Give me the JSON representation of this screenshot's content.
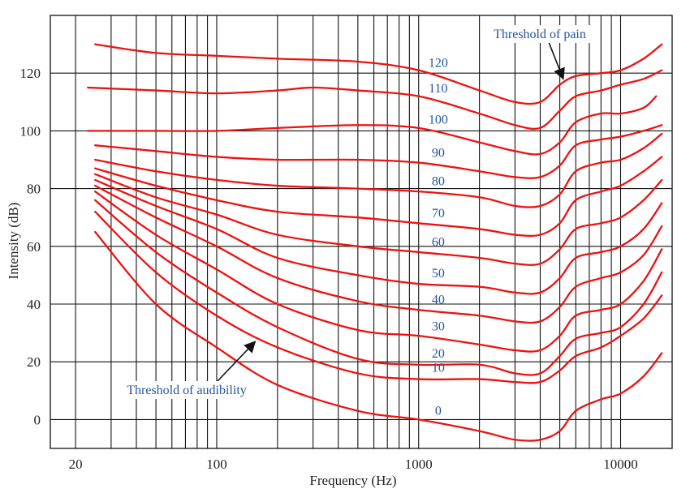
{
  "chart_data": {
    "type": "line",
    "title": "",
    "xlabel": "Frequency (Hz)",
    "ylabel": "Intensity (dB)",
    "xscale": "log",
    "xlim": [
      15,
      18000
    ],
    "ylim": [
      -10,
      140
    ],
    "grid": true,
    "x_tick_labels": [
      {
        "value": 20,
        "label": "20"
      },
      {
        "value": 100,
        "label": "100"
      },
      {
        "value": 1000,
        "label": "1000"
      },
      {
        "value": 10000,
        "label": "10000"
      }
    ],
    "x_minor_gridlines": [
      20,
      30,
      40,
      50,
      60,
      70,
      80,
      90,
      100,
      200,
      300,
      400,
      500,
      600,
      700,
      800,
      900,
      1000,
      2000,
      3000,
      4000,
      5000,
      6000,
      7000,
      8000,
      9000,
      10000
    ],
    "y_ticks": [
      {
        "value": 0,
        "label": "0"
      },
      {
        "value": 20,
        "label": "20"
      },
      {
        "value": 40,
        "label": "40"
      },
      {
        "value": 60,
        "label": "60"
      },
      {
        "value": 80,
        "label": "80"
      },
      {
        "value": 100,
        "label": "100"
      },
      {
        "value": 120,
        "label": "120"
      }
    ],
    "series": [
      {
        "name": "0",
        "points": [
          [
            25,
            65
          ],
          [
            50,
            40
          ],
          [
            100,
            25
          ],
          [
            200,
            12
          ],
          [
            500,
            3
          ],
          [
            1000,
            0
          ],
          [
            2000,
            -4
          ],
          [
            3000,
            -7
          ],
          [
            4000,
            -7
          ],
          [
            5000,
            -4
          ],
          [
            6000,
            3
          ],
          [
            8000,
            7
          ],
          [
            10000,
            9
          ],
          [
            13000,
            15
          ],
          [
            16000,
            23
          ]
        ]
      },
      {
        "name": "10",
        "points": [
          [
            25,
            72
          ],
          [
            50,
            51
          ],
          [
            100,
            36
          ],
          [
            200,
            25
          ],
          [
            500,
            16
          ],
          [
            1000,
            14
          ],
          [
            2000,
            14
          ],
          [
            3000,
            13
          ],
          [
            4000,
            13
          ],
          [
            5000,
            17
          ],
          [
            6000,
            22
          ],
          [
            8000,
            25
          ],
          [
            10000,
            29
          ],
          [
            13000,
            35
          ],
          [
            16000,
            43
          ]
        ]
      },
      {
        "name": "20",
        "points": [
          [
            25,
            76
          ],
          [
            50,
            58
          ],
          [
            100,
            44
          ],
          [
            200,
            32
          ],
          [
            500,
            21
          ],
          [
            1000,
            19
          ],
          [
            2000,
            19
          ],
          [
            3000,
            16
          ],
          [
            4000,
            16
          ],
          [
            5000,
            22
          ],
          [
            6000,
            28
          ],
          [
            8000,
            30
          ],
          [
            10000,
            32
          ],
          [
            13000,
            40
          ],
          [
            16000,
            51
          ]
        ]
      },
      {
        "name": "30",
        "points": [
          [
            25,
            79
          ],
          [
            50,
            64
          ],
          [
            100,
            52
          ],
          [
            200,
            40
          ],
          [
            500,
            31
          ],
          [
            1000,
            29
          ],
          [
            2000,
            26
          ],
          [
            3000,
            24
          ],
          [
            4000,
            24
          ],
          [
            5000,
            29
          ],
          [
            6000,
            36
          ],
          [
            8000,
            38
          ],
          [
            10000,
            40
          ],
          [
            13000,
            48
          ],
          [
            16000,
            59
          ]
        ]
      },
      {
        "name": "40",
        "points": [
          [
            25,
            81
          ],
          [
            50,
            70
          ],
          [
            100,
            60
          ],
          [
            200,
            49
          ],
          [
            500,
            41
          ],
          [
            1000,
            38
          ],
          [
            2000,
            36
          ],
          [
            3000,
            34
          ],
          [
            4000,
            34
          ],
          [
            5000,
            39
          ],
          [
            6000,
            46
          ],
          [
            8000,
            49
          ],
          [
            10000,
            51
          ],
          [
            13000,
            57
          ],
          [
            16000,
            67
          ]
        ]
      },
      {
        "name": "50",
        "points": [
          [
            25,
            83
          ],
          [
            50,
            74
          ],
          [
            100,
            66
          ],
          [
            200,
            56
          ],
          [
            500,
            50
          ],
          [
            1000,
            47
          ],
          [
            2000,
            46
          ],
          [
            3000,
            44
          ],
          [
            4000,
            44
          ],
          [
            5000,
            49
          ],
          [
            6000,
            56
          ],
          [
            8000,
            58
          ],
          [
            10000,
            60
          ],
          [
            13000,
            66
          ],
          [
            16000,
            75
          ]
        ]
      },
      {
        "name": "60",
        "points": [
          [
            25,
            85
          ],
          [
            50,
            77
          ],
          [
            100,
            71
          ],
          [
            200,
            64
          ],
          [
            500,
            60
          ],
          [
            1000,
            58
          ],
          [
            2000,
            56
          ],
          [
            3000,
            54
          ],
          [
            4000,
            54
          ],
          [
            5000,
            59
          ],
          [
            6000,
            66
          ],
          [
            8000,
            68
          ],
          [
            10000,
            70
          ],
          [
            13000,
            76
          ],
          [
            16000,
            83
          ]
        ]
      },
      {
        "name": "70",
        "points": [
          [
            25,
            87
          ],
          [
            50,
            81
          ],
          [
            100,
            76
          ],
          [
            200,
            72
          ],
          [
            500,
            70
          ],
          [
            1000,
            68
          ],
          [
            2000,
            66
          ],
          [
            3000,
            64
          ],
          [
            4000,
            64
          ],
          [
            5000,
            68
          ],
          [
            6000,
            76
          ],
          [
            8000,
            79
          ],
          [
            10000,
            81
          ],
          [
            13000,
            86
          ],
          [
            16000,
            91
          ]
        ]
      },
      {
        "name": "80",
        "points": [
          [
            25,
            90
          ],
          [
            50,
            86
          ],
          [
            100,
            83
          ],
          [
            200,
            81
          ],
          [
            500,
            80
          ],
          [
            1000,
            79
          ],
          [
            2000,
            77
          ],
          [
            3000,
            74
          ],
          [
            4000,
            74
          ],
          [
            5000,
            78
          ],
          [
            6000,
            86
          ],
          [
            8000,
            89
          ],
          [
            10000,
            90
          ],
          [
            13000,
            94
          ],
          [
            16000,
            99
          ]
        ]
      },
      {
        "name": "90",
        "points": [
          [
            25,
            95
          ],
          [
            50,
            93
          ],
          [
            100,
            91
          ],
          [
            200,
            90
          ],
          [
            500,
            90
          ],
          [
            1000,
            89
          ],
          [
            2000,
            86
          ],
          [
            3000,
            84
          ],
          [
            4000,
            84
          ],
          [
            5000,
            88
          ],
          [
            6000,
            95
          ],
          [
            8000,
            97
          ],
          [
            10000,
            98
          ],
          [
            13000,
            100
          ],
          [
            16000,
            102
          ]
        ]
      },
      {
        "name": "100",
        "points": [
          [
            23,
            100
          ],
          [
            50,
            100
          ],
          [
            100,
            100
          ],
          [
            200,
            101
          ],
          [
            500,
            102
          ],
          [
            1000,
            101
          ],
          [
            2000,
            96
          ],
          [
            3000,
            93
          ],
          [
            4000,
            92
          ],
          [
            5000,
            96
          ],
          [
            6000,
            103
          ],
          [
            8000,
            106
          ],
          [
            10000,
            106
          ],
          [
            13000,
            108
          ],
          [
            15000,
            112
          ]
        ]
      },
      {
        "name": "110",
        "points": [
          [
            23,
            115
          ],
          [
            50,
            114
          ],
          [
            100,
            113
          ],
          [
            200,
            114
          ],
          [
            300,
            115
          ],
          [
            500,
            114
          ],
          [
            1000,
            112
          ],
          [
            2000,
            106
          ],
          [
            3000,
            102
          ],
          [
            4000,
            101
          ],
          [
            5000,
            107
          ],
          [
            6000,
            112
          ],
          [
            8000,
            114
          ],
          [
            10000,
            116
          ],
          [
            13000,
            118
          ],
          [
            16000,
            121
          ]
        ]
      },
      {
        "name": "120",
        "points": [
          [
            25,
            130
          ],
          [
            50,
            127
          ],
          [
            100,
            126
          ],
          [
            200,
            125
          ],
          [
            500,
            124
          ],
          [
            1000,
            121
          ],
          [
            2000,
            114
          ],
          [
            3000,
            110
          ],
          [
            4000,
            110
          ],
          [
            5000,
            116
          ],
          [
            6000,
            119
          ],
          [
            8000,
            120
          ],
          [
            10000,
            121
          ],
          [
            13000,
            125
          ],
          [
            16000,
            130
          ]
        ]
      }
    ],
    "annotations": [
      {
        "text": "Threshold of pain",
        "arrow_to": [
          5200,
          118
        ]
      },
      {
        "text": "Threshold of audibility",
        "arrow_to": [
          155,
          27
        ]
      }
    ],
    "colors": {
      "curve": "#ee1111",
      "label": "#2255a0",
      "grid": "#111111",
      "text": "#222222"
    }
  }
}
